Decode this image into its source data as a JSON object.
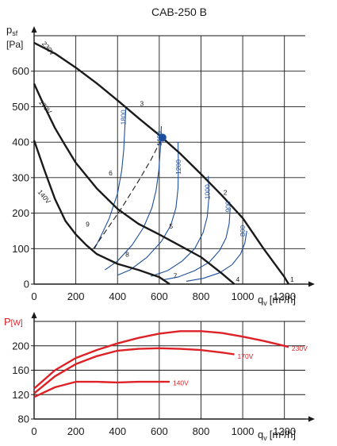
{
  "colors": {
    "axis": "#1a1a1a",
    "grid": "#1a1a1a",
    "fan_curve": "#1a1a1a",
    "iso_line": "#1d4f9c",
    "system_line": "#1a1a1a",
    "power_curve": "#dd2127",
    "power_axis_label": "#dd2127",
    "point": "#1d4f9c"
  },
  "chart_data": [
    {
      "type": "line",
      "title": "CAB-250 B",
      "xlabel": "q",
      "xlabel_sub": "v",
      "xlabel_unit": "[m³/h]",
      "ylabel": "p",
      "ylabel_sub": "sf",
      "ylabel_unit": "[Pa]",
      "xlim": [
        0,
        1300
      ],
      "ylim": [
        0,
        700
      ],
      "xticks": [
        "0",
        "200",
        "400",
        "600",
        "800",
        "1000",
        "1200"
      ],
      "yticks": [
        "0",
        "100",
        "200",
        "300",
        "400",
        "500",
        "600"
      ],
      "grid": true,
      "series": [
        {
          "name": "230V",
          "kind": "fan_curve",
          "x": [
            0,
            100,
            200,
            300,
            400,
            500,
            600,
            700,
            800,
            900,
            1000,
            1100,
            1200,
            1220
          ],
          "y": [
            680,
            650,
            610,
            566,
            518,
            468,
            420,
            368,
            310,
            250,
            186,
            100,
            20,
            0
          ]
        },
        {
          "name": "170V",
          "kind": "fan_curve",
          "x": [
            0,
            50,
            100,
            150,
            200,
            300,
            400,
            500,
            600,
            700,
            800,
            900,
            960
          ],
          "y": [
            565,
            500,
            440,
            390,
            342,
            270,
            212,
            170,
            140,
            108,
            76,
            30,
            0
          ]
        },
        {
          "name": "140V",
          "kind": "fan_curve",
          "x": [
            0,
            50,
            100,
            150,
            200,
            250,
            300,
            400,
            500,
            600,
            650
          ],
          "y": [
            405,
            320,
            240,
            178,
            140,
            110,
            85,
            57,
            40,
            20,
            0
          ]
        },
        {
          "name": "1",
          "kind": "system_point",
          "x": [
            1220
          ],
          "y": [
            0
          ]
        },
        {
          "name": "2",
          "kind": "system_point",
          "x": [
            900
          ],
          "y": [
            245
          ]
        },
        {
          "name": "3",
          "kind": "system_point",
          "x": [
            500
          ],
          "y": [
            495
          ]
        },
        {
          "name": "4",
          "kind": "system_point",
          "x": [
            960
          ],
          "y": [
            0
          ]
        },
        {
          "name": "5",
          "kind": "system_point",
          "x": [
            640
          ],
          "y": [
            150
          ]
        },
        {
          "name": "6",
          "kind": "system_point",
          "x": [
            350
          ],
          "y": [
            300
          ]
        },
        {
          "name": "7",
          "kind": "system_point",
          "x": [
            660
          ],
          "y": [
            10
          ]
        },
        {
          "name": "8",
          "kind": "system_point",
          "x": [
            430
          ],
          "y": [
            70
          ]
        },
        {
          "name": "9",
          "kind": "system_point",
          "x": [
            240
          ],
          "y": [
            155
          ]
        },
        {
          "name": "1800",
          "kind": "iso_line",
          "x": [
            440,
            435,
            430,
            420,
            400,
            360,
            320,
            290
          ],
          "y": [
            500,
            440,
            380,
            320,
            255,
            185,
            135,
            100
          ]
        },
        {
          "name": "1400",
          "kind": "iso_line",
          "x": [
            610,
            605,
            598,
            585,
            565,
            525,
            470,
            400,
            340
          ],
          "y": [
            445,
            380,
            320,
            265,
            215,
            160,
            110,
            65,
            40
          ]
        },
        {
          "name": "1200",
          "kind": "iso_line",
          "x": [
            690,
            692,
            690,
            680,
            655,
            610,
            540,
            460,
            400
          ],
          "y": [
            400,
            330,
            270,
            215,
            165,
            120,
            75,
            40,
            25
          ]
        },
        {
          "name": "1000",
          "kind": "iso_line",
          "x": [
            835,
            838,
            830,
            810,
            770,
            710,
            640,
            560
          ],
          "y": [
            305,
            245,
            190,
            145,
            100,
            65,
            38,
            22
          ]
        },
        {
          "name": "900",
          "kind": "iso_line",
          "x": [
            940,
            935,
            920,
            890,
            840,
            770,
            690,
            620
          ],
          "y": [
            215,
            170,
            130,
            95,
            62,
            38,
            20,
            12
          ]
        },
        {
          "name": "800",
          "kind": "iso_line",
          "x": [
            1020,
            1010,
            990,
            950,
            890,
            810,
            730
          ],
          "y": [
            150,
            115,
            85,
            55,
            32,
            16,
            8
          ]
        },
        {
          "name": "",
          "kind": "system_line_dashed",
          "x": [
            285,
            350,
            420,
            500,
            560,
            615
          ],
          "y": [
            100,
            155,
            215,
            290,
            350,
            413
          ]
        },
        {
          "name": "",
          "kind": "operating_point",
          "x": [
            615
          ],
          "y": [
            413
          ]
        }
      ],
      "annotations": [
        {
          "text": "230V",
          "x": 60,
          "y": 660
        },
        {
          "text": "170V",
          "x": 45,
          "y": 495
        },
        {
          "text": "140V",
          "x": 40,
          "y": 242
        },
        {
          "text": "1800",
          "x": 440,
          "y": 470
        },
        {
          "text": "1400",
          "x": 612,
          "y": 410
        },
        {
          "text": "1200",
          "x": 703,
          "y": 330
        },
        {
          "text": "1000",
          "x": 842,
          "y": 260
        },
        {
          "text": "900",
          "x": 940,
          "y": 218
        },
        {
          "text": "800",
          "x": 1012,
          "y": 150
        }
      ]
    },
    {
      "type": "line",
      "title": "",
      "xlabel": "q",
      "xlabel_sub": "v",
      "xlabel_unit": "[m³/h]",
      "ylabel": "P",
      "ylabel_unit": "[W]",
      "xlim": [
        0,
        1300
      ],
      "ylim": [
        80,
        240
      ],
      "xticks": [
        "0",
        "200",
        "400",
        "600",
        "800",
        "1000",
        "1200"
      ],
      "yticks": [
        "80",
        "120",
        "160",
        "200"
      ],
      "grid": true,
      "series": [
        {
          "name": "230V",
          "x": [
            0,
            100,
            200,
            300,
            400,
            500,
            600,
            700,
            800,
            900,
            1000,
            1100,
            1200,
            1220
          ],
          "y": [
            130,
            160,
            180,
            193,
            204,
            213,
            220,
            224,
            224,
            221,
            215,
            208,
            200,
            198
          ]
        },
        {
          "name": "170V",
          "x": [
            0,
            100,
            200,
            300,
            400,
            500,
            600,
            700,
            800,
            900,
            960
          ],
          "y": [
            122,
            150,
            170,
            183,
            192,
            195,
            196,
            195,
            193,
            189,
            186
          ]
        },
        {
          "name": "140V",
          "x": [
            0,
            100,
            200,
            300,
            400,
            500,
            600,
            650
          ],
          "y": [
            116,
            132,
            141,
            141,
            140,
            141,
            141,
            141
          ]
        }
      ],
      "annotations": [
        {
          "text": "230V",
          "x": 1235,
          "y": 196
        },
        {
          "text": "170V",
          "x": 975,
          "y": 183
        },
        {
          "text": "140V",
          "x": 665,
          "y": 139
        }
      ]
    }
  ]
}
